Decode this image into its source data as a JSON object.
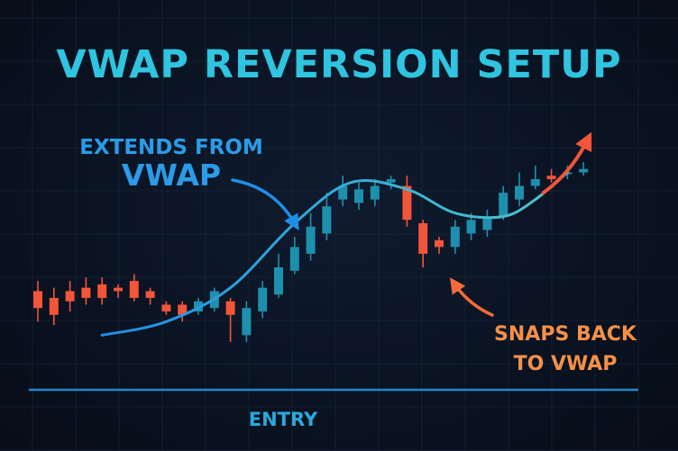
{
  "colors": {
    "background": "#0a1322",
    "grid": "#1b2a40",
    "title": "#2fc4e0",
    "bull": "#1f8fae",
    "bear": "#f2553a",
    "vwap_curve_start": "#1e8fe6",
    "vwap_curve_end": "#4fc6c6",
    "extends_text": "#2b9be8",
    "snaps_text": "#f59048",
    "entry_line": "#2287c7",
    "entry_text": "#2aa9dc"
  },
  "chart_data": {
    "type": "candlestick",
    "title": "VWAP REVERSION SETUP",
    "annotations": {
      "extends_line1": "EXTENDS FROM",
      "extends_line2": "VWAP",
      "snaps_line1": "SNAPS BACK",
      "snaps_line2": "TO VWAP",
      "entry": "ENTRY"
    },
    "candles": [
      {
        "open": 79,
        "close": 74,
        "high": 82,
        "low": 70
      },
      {
        "open": 77,
        "close": 72,
        "high": 80,
        "low": 69
      },
      {
        "open": 79,
        "close": 76,
        "high": 82,
        "low": 73
      },
      {
        "open": 80,
        "close": 77,
        "high": 83,
        "low": 75
      },
      {
        "open": 81,
        "close": 77,
        "high": 83,
        "low": 75
      },
      {
        "open": 80,
        "close": 79,
        "high": 81,
        "low": 77
      },
      {
        "open": 82,
        "close": 77,
        "high": 84,
        "low": 76
      },
      {
        "open": 79,
        "close": 77,
        "high": 80,
        "low": 75
      },
      {
        "open": 75,
        "close": 73,
        "high": 76,
        "low": 72
      },
      {
        "open": 75,
        "close": 72,
        "high": 76,
        "low": 70
      },
      {
        "open": 73,
        "close": 76,
        "high": 77,
        "low": 72
      },
      {
        "open": 74,
        "close": 79,
        "high": 80,
        "low": 73
      },
      {
        "open": 76,
        "close": 72,
        "high": 77,
        "low": 64
      },
      {
        "open": 66,
        "close": 74,
        "high": 76,
        "low": 64
      },
      {
        "open": 73,
        "close": 80,
        "high": 82,
        "low": 71
      },
      {
        "open": 78,
        "close": 86,
        "high": 90,
        "low": 77
      },
      {
        "open": 85,
        "close": 92,
        "high": 95,
        "low": 84
      },
      {
        "open": 90,
        "close": 98,
        "high": 102,
        "low": 88
      },
      {
        "open": 96,
        "close": 104,
        "high": 108,
        "low": 94
      },
      {
        "open": 106,
        "close": 110,
        "high": 113,
        "low": 104
      },
      {
        "open": 105,
        "close": 109,
        "high": 111,
        "low": 103
      },
      {
        "open": 106,
        "close": 110,
        "high": 112,
        "low": 104
      },
      {
        "open": 111,
        "close": 112,
        "high": 113,
        "low": 109
      },
      {
        "open": 110,
        "close": 100,
        "high": 113,
        "low": 98
      },
      {
        "open": 99,
        "close": 90,
        "high": 100,
        "low": 86
      },
      {
        "open": 94,
        "close": 92,
        "high": 95,
        "low": 90
      },
      {
        "open": 92,
        "close": 98,
        "high": 100,
        "low": 90
      },
      {
        "open": 96,
        "close": 100,
        "high": 102,
        "low": 94
      },
      {
        "open": 97,
        "close": 101,
        "high": 103,
        "low": 95
      },
      {
        "open": 101,
        "close": 108,
        "high": 110,
        "low": 100
      },
      {
        "open": 106,
        "close": 110,
        "high": 114,
        "low": 104
      },
      {
        "open": 110,
        "close": 112,
        "high": 116,
        "low": 109
      },
      {
        "open": 113,
        "close": 112,
        "high": 115,
        "low": 111
      },
      {
        "open": 114,
        "close": 114,
        "high": 116,
        "low": 112
      },
      {
        "open": 114,
        "close": 115,
        "high": 117,
        "low": 113
      }
    ],
    "vwap": [
      {
        "t": 4,
        "v": 66
      },
      {
        "t": 8,
        "v": 70
      },
      {
        "t": 12,
        "v": 80
      },
      {
        "t": 16,
        "v": 99
      },
      {
        "t": 19.5,
        "v": 111
      },
      {
        "t": 23,
        "v": 109
      },
      {
        "t": 26,
        "v": 102
      },
      {
        "t": 29,
        "v": 101
      },
      {
        "t": 31,
        "v": 106
      },
      {
        "t": 33,
        "v": 114
      }
    ],
    "breakout_arrow": {
      "from_t": 31.5,
      "from_v": 108,
      "to_t": 34.3,
      "to_v": 124
    },
    "grid": true,
    "ylim": [
      60,
      125
    ]
  }
}
